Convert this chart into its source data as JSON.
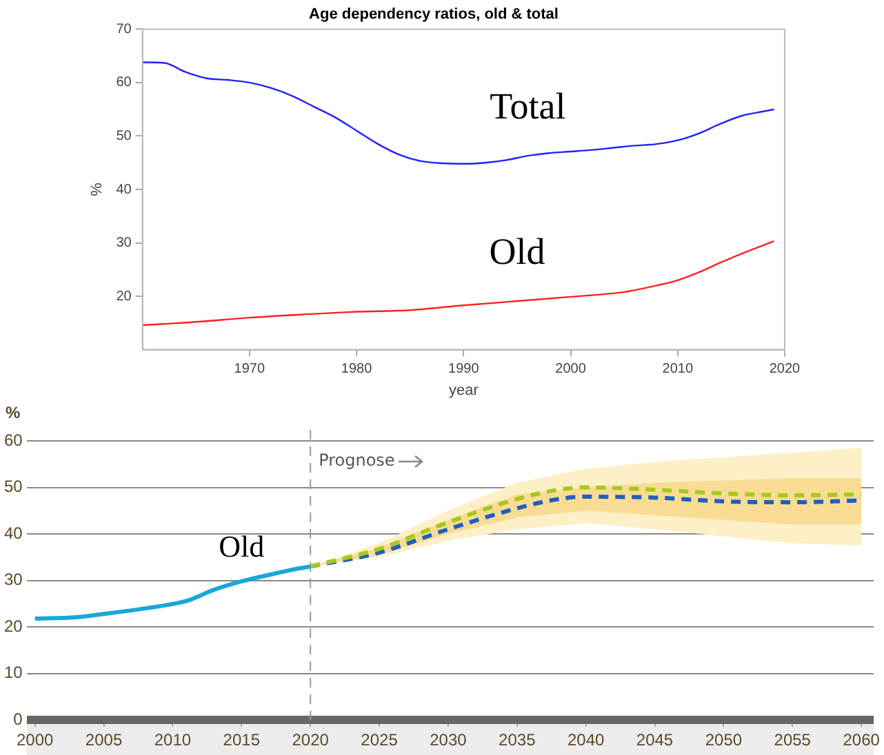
{
  "chart_data": [
    {
      "type": "line",
      "title": "Age dependency ratios, old & total",
      "xlabel": "year",
      "ylabel": "%",
      "xlim": [
        1960,
        2020
      ],
      "xticks": [
        1970,
        1980,
        1990,
        2000,
        2010,
        2020
      ],
      "ylim": [
        10,
        70
      ],
      "yticks": [
        20,
        30,
        40,
        50,
        60,
        70
      ],
      "marker": "none",
      "line_style": "solid",
      "series": [
        {
          "name": "Total",
          "color": "#2020ff",
          "x": [
            1960,
            1962,
            1964,
            1966,
            1968,
            1970,
            1972,
            1974,
            1976,
            1978,
            1980,
            1982,
            1984,
            1986,
            1988,
            1990,
            1992,
            1994,
            1996,
            1998,
            2000,
            2002,
            2004,
            2006,
            2008,
            2010,
            2012,
            2014,
            2016,
            2018,
            2019
          ],
          "values": [
            63.8,
            63.7,
            62,
            60.8,
            60.5,
            60,
            59,
            57.5,
            55.5,
            53.5,
            51,
            48.5,
            46.5,
            45.3,
            44.9,
            44.8,
            45,
            45.5,
            46.3,
            46.8,
            47.1,
            47.4,
            47.8,
            48.2,
            48.5,
            49.2,
            50.5,
            52.3,
            53.8,
            54.6,
            55
          ]
        },
        {
          "name": "Old",
          "color": "#ff2020",
          "x": [
            1960,
            1965,
            1970,
            1975,
            1980,
            1985,
            1990,
            1995,
            2000,
            2005,
            2008,
            2010,
            2012,
            2014,
            2016,
            2019
          ],
          "values": [
            14.6,
            15.2,
            16,
            16.6,
            17.1,
            17.4,
            18.3,
            19.1,
            19.9,
            20.8,
            22,
            23,
            24.5,
            26.3,
            28,
            30.3
          ]
        }
      ],
      "legend": false
    },
    {
      "type": "line",
      "ylabel": "%",
      "xlim": [
        1999.4,
        2060.9
      ],
      "xticks": [
        2000,
        2005,
        2010,
        2015,
        2020,
        2025,
        2030,
        2035,
        2040,
        2045,
        2050,
        2055,
        2060
      ],
      "ylim": [
        0,
        60
      ],
      "yticks": [
        0,
        10,
        20,
        30,
        40,
        50,
        60
      ],
      "grid": "y",
      "marker": "none",
      "series": [
        {
          "type": "area",
          "color": "#fdefc6",
          "x": [
            2020,
            2025,
            2030,
            2035,
            2040,
            2045,
            2050,
            2055,
            2060
          ],
          "values": [
            null,
            null,
            null,
            null,
            null,
            null,
            null,
            null,
            null
          ],
          "lower": [
            33,
            35,
            38.5,
            41,
            42.3,
            41,
            39.5,
            38,
            37.5
          ],
          "upper": [
            33,
            38,
            45,
            51,
            54,
            55.5,
            56.5,
            57.5,
            58.5
          ]
        },
        {
          "type": "area",
          "color": "#f9dc94",
          "x": [
            2020,
            2025,
            2030,
            2035,
            2040,
            2045,
            2050,
            2055,
            2060
          ],
          "values": [
            null,
            null,
            null,
            null,
            null,
            null,
            null,
            null,
            null
          ],
          "lower": [
            33,
            35.5,
            40,
            43.5,
            45,
            44,
            43,
            42,
            42
          ],
          "upper": [
            33,
            37,
            43,
            48.5,
            50,
            51,
            51.5,
            52,
            52
          ]
        },
        {
          "name": "Old",
          "color": "#1aa7d8",
          "line_style": "solid",
          "x": [
            2000,
            2003,
            2005,
            2008,
            2011,
            2013,
            2015,
            2017,
            2019,
            2020
          ],
          "values": [
            21.8,
            22.1,
            22.8,
            24,
            25.6,
            28,
            29.8,
            31.2,
            32.5,
            33
          ]
        },
        {
          "color": "#a8c81e",
          "line_style": "dashed",
          "x": [
            2020,
            2025,
            2030,
            2035,
            2038,
            2040,
            2045,
            2050,
            2055,
            2060
          ],
          "values": [
            33,
            36.8,
            42.5,
            47.5,
            49.5,
            50,
            49.5,
            48.7,
            48.3,
            48.5
          ]
        },
        {
          "color": "#1f5fbf",
          "line_style": "dashed",
          "x": [
            2020,
            2025,
            2030,
            2035,
            2038,
            2040,
            2045,
            2050,
            2055,
            2060
          ],
          "values": [
            33,
            36,
            41,
            45.5,
            47.5,
            48,
            47.8,
            47,
            46.8,
            47.2
          ]
        }
      ],
      "ref_lines": [
        {
          "axis": "x",
          "value": 2020,
          "label": "Prognose",
          "color": "#999999",
          "line_style": "dashed"
        }
      ]
    }
  ]
}
